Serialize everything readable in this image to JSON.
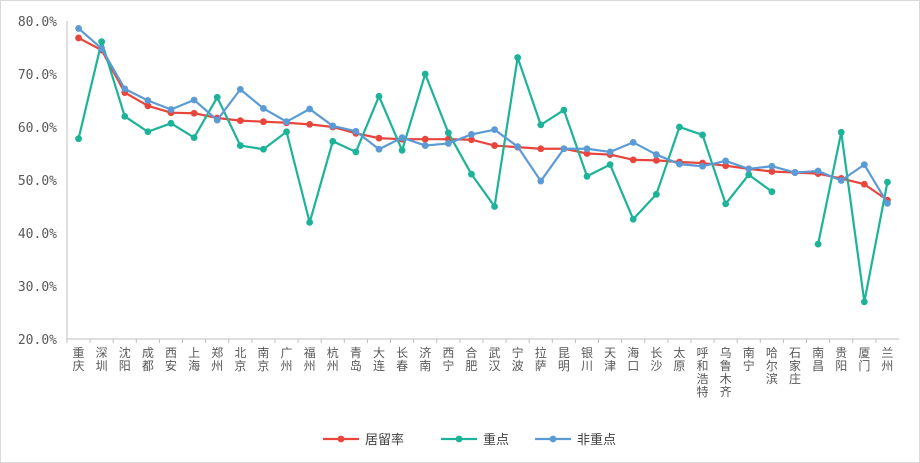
{
  "chart_data": {
    "type": "line",
    "title": "",
    "xlabel": "",
    "ylabel": "",
    "ylim": [
      20,
      80
    ],
    "yticks": [
      "20.0%",
      "30.0%",
      "40.0%",
      "50.0%",
      "60.0%",
      "70.0%",
      "80.0%"
    ],
    "grid": false,
    "legend_position": "bottom",
    "categories": [
      "重庆",
      "深圳",
      "沈阳",
      "成都",
      "西安",
      "上海",
      "郑州",
      "北京",
      "南京",
      "广州",
      "福州",
      "杭州",
      "青岛",
      "大连",
      "长春",
      "济南",
      "西宁",
      "合肥",
      "武汉",
      "宁波",
      "拉萨",
      "昆明",
      "银川",
      "天津",
      "海口",
      "长沙",
      "太原",
      "呼和浩特",
      "乌鲁木齐",
      "南宁",
      "哈尔滨",
      "石家庄",
      "南昌",
      "贵阳",
      "厦门",
      "兰州"
    ],
    "series": [
      {
        "name": "居留率",
        "color": "#E8453C",
        "values": [
          76.8,
          74.5,
          66.5,
          64.0,
          62.7,
          62.6,
          61.7,
          61.2,
          61.0,
          60.8,
          60.5,
          60.0,
          58.8,
          57.9,
          57.7,
          57.7,
          57.7,
          57.6,
          56.5,
          56.2,
          55.9,
          55.9,
          55.0,
          54.8,
          53.8,
          53.7,
          53.4,
          53.2,
          52.7,
          52.1,
          51.6,
          51.4,
          51.2,
          50.3,
          49.2,
          46.2
        ]
      },
      {
        "name": "重点",
        "color": "#1DB398",
        "values": [
          57.8,
          76.1,
          62.0,
          59.1,
          60.7,
          58.0,
          65.6,
          56.5,
          55.8,
          59.1,
          42.0,
          57.3,
          55.3,
          65.8,
          55.6,
          70.0,
          58.9,
          51.1,
          45.0,
          73.1,
          60.4,
          63.2,
          50.7,
          52.9,
          42.6,
          47.3,
          60.0,
          58.5,
          45.5,
          51.0,
          47.8,
          null,
          37.9,
          59.0,
          27.0,
          49.6
        ]
      },
      {
        "name": "非重点",
        "color": "#5B9BD5",
        "values": [
          78.6,
          74.8,
          67.2,
          65.0,
          63.3,
          65.1,
          61.3,
          67.1,
          63.5,
          61.0,
          63.4,
          60.2,
          59.2,
          55.8,
          58.0,
          56.5,
          56.9,
          58.6,
          59.5,
          56.3,
          49.8,
          55.9,
          55.9,
          55.3,
          57.1,
          54.8,
          53.0,
          52.6,
          53.6,
          52.1,
          52.6,
          51.4,
          51.7,
          49.9,
          52.9,
          45.6
        ]
      }
    ]
  }
}
